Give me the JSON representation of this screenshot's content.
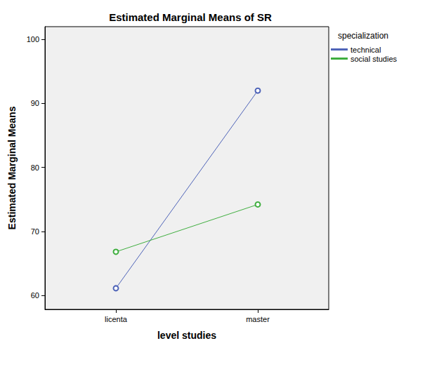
{
  "chart_data": {
    "type": "line",
    "title": "Estimated Marginal Means of SR",
    "x_label": "level studies",
    "y_label": "Estimated Marginal Means",
    "legend_title": "specialization",
    "categories": [
      "licenta",
      "master"
    ],
    "series": [
      {
        "name": "technical",
        "color": "#4f64b8",
        "values": [
          61.1,
          92.0
        ]
      },
      {
        "name": "social studies",
        "color": "#3fae3f",
        "values": [
          66.8,
          74.2
        ]
      }
    ],
    "ylim": [
      57.8,
      102
    ],
    "yticks": [
      60,
      70,
      80,
      90,
      100
    ],
    "grid": false,
    "legend": "top right",
    "marker": "circle",
    "line_style": "solid"
  }
}
